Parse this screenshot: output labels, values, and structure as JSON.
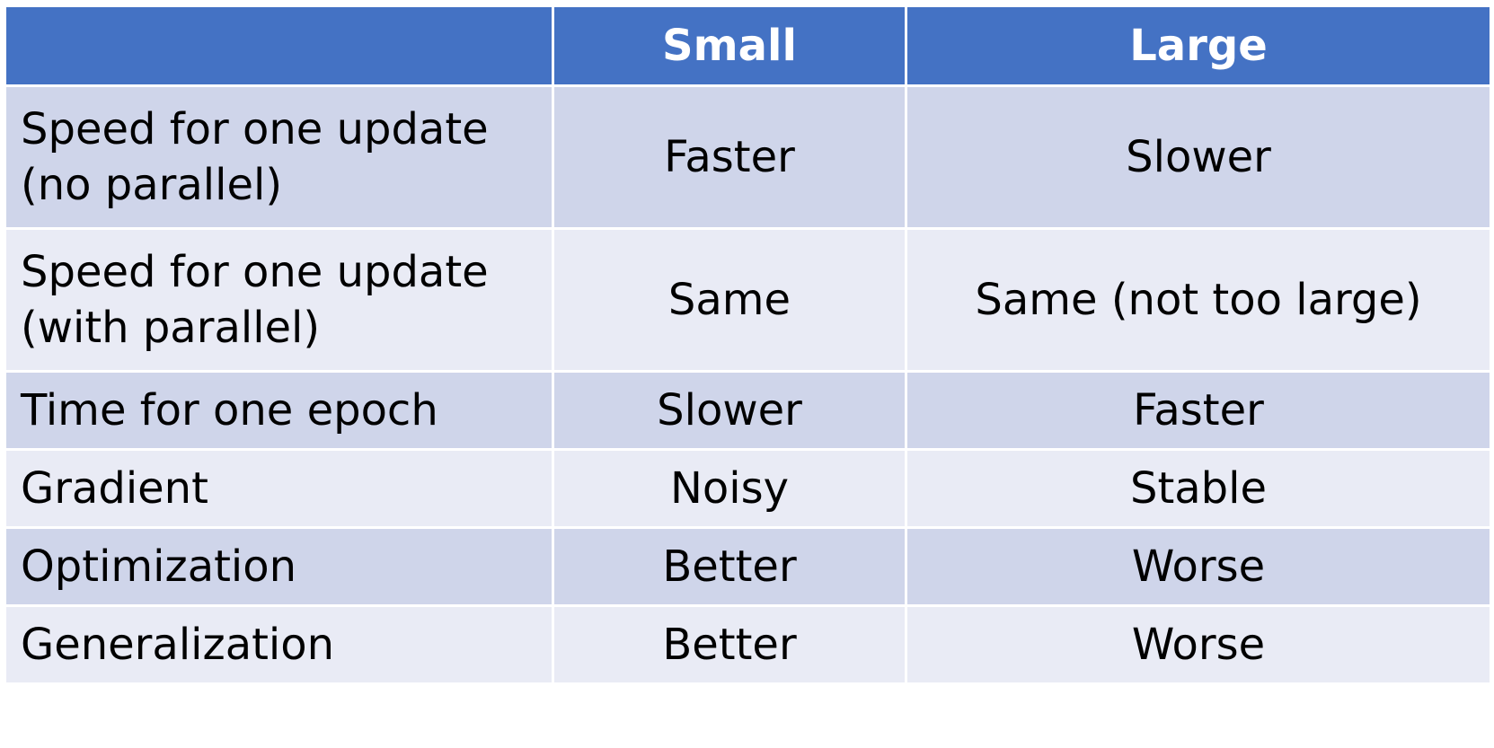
{
  "table": {
    "headers": [
      "",
      "Small",
      "Large"
    ],
    "rows": [
      {
        "label": "Speed for one update (no parallel)",
        "small": "Faster",
        "large": "Slower"
      },
      {
        "label": "Speed for one update (with parallel)",
        "small": "Same",
        "large": "Same (not too large)"
      },
      {
        "label": "Time for one epoch",
        "small": "Slower",
        "large": "Faster"
      },
      {
        "label": "Gradient",
        "small": "Noisy",
        "large": "Stable"
      },
      {
        "label": "Optimization",
        "small": "Better",
        "large": "Worse"
      },
      {
        "label": "Generalization",
        "small": "Better",
        "large": "Worse"
      }
    ]
  },
  "colors": {
    "header_bg": "#4472c4",
    "row_odd_bg": "#cfd5ea",
    "row_even_bg": "#e9ebf5"
  }
}
